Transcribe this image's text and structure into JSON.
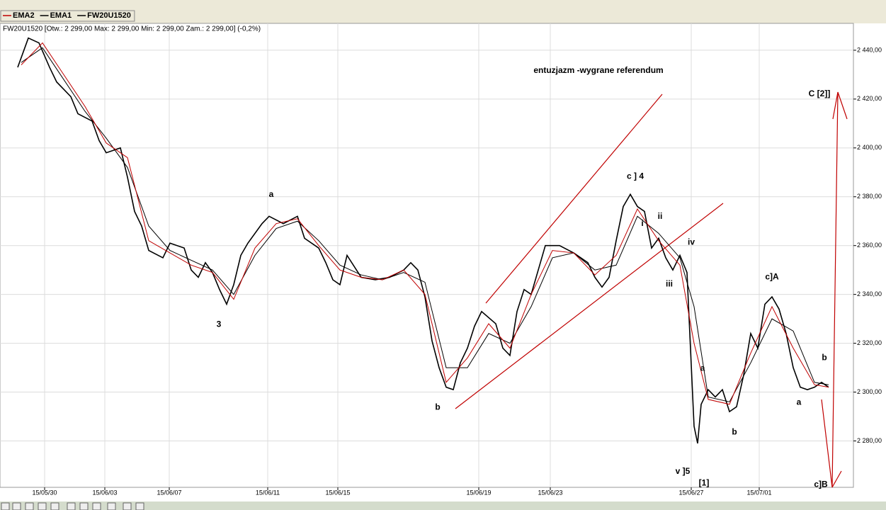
{
  "chart_data": {
    "type": "line",
    "info": "FW20U1520 [Otw.: 2 299,00  Max: 2 299,00  Min: 2 299,00  Zam.: 2 299,00] (-0,2%)",
    "xlim": [
      0,
      120.5
    ],
    "xticks": [
      {
        "value": 6.3,
        "label": "15/05/30"
      },
      {
        "value": 14.8,
        "label": "15/06/03"
      },
      {
        "value": 23.9,
        "label": "15/06/07"
      },
      {
        "value": 37.8,
        "label": "15/06/11"
      },
      {
        "value": 47.7,
        "label": "15/06/15"
      },
      {
        "value": 67.6,
        "label": "15/06/19"
      },
      {
        "value": 77.7,
        "label": "15/06/23"
      },
      {
        "value": 97.6,
        "label": "15/06/27"
      },
      {
        "value": 107.2,
        "label": "15/07/01"
      }
    ],
    "ylim": [
      2261,
      2451
    ],
    "yticks": [
      {
        "value": 2280,
        "label": "2 280,00"
      },
      {
        "value": 2300,
        "label": "2 300,00"
      },
      {
        "value": 2320,
        "label": "2 320,00"
      },
      {
        "value": 2340,
        "label": "2 340,00"
      },
      {
        "value": 2360,
        "label": "2 360,00"
      },
      {
        "value": 2380,
        "label": "2 380,00"
      },
      {
        "value": 2400,
        "label": "2 400,00"
      },
      {
        "value": 2420,
        "label": "2 420,00"
      },
      {
        "value": 2440,
        "label": "2 440,00"
      }
    ],
    "grid": true,
    "series": [
      {
        "name": "EMA2",
        "color": "#c00000",
        "x": [
          3,
          6,
          9,
          12,
          15,
          18,
          21,
          24,
          27,
          30,
          33,
          36,
          39,
          42,
          45,
          48,
          51,
          54,
          57,
          60,
          63,
          66,
          69,
          72,
          75,
          78,
          81,
          84,
          87,
          90,
          93,
          96,
          98,
          100,
          103,
          106,
          109,
          112,
          115,
          117
        ],
        "values": [
          2434,
          2443,
          2430,
          2417,
          2402,
          2396,
          2362,
          2357,
          2352,
          2349,
          2338,
          2359,
          2369,
          2371,
          2360,
          2350,
          2347,
          2346,
          2350,
          2340,
          2304,
          2314,
          2328,
          2318,
          2340,
          2358,
          2357,
          2348,
          2356,
          2375,
          2362,
          2352,
          2320,
          2297,
          2295,
          2316,
          2335,
          2318,
          2303,
          2302
        ]
      },
      {
        "name": "EMA1",
        "color": "#000000",
        "x": [
          3,
          6,
          9,
          12,
          15,
          18,
          21,
          24,
          27,
          30,
          33,
          36,
          39,
          42,
          45,
          48,
          51,
          54,
          57,
          60,
          63,
          66,
          69,
          72,
          75,
          78,
          81,
          84,
          87,
          90,
          93,
          96,
          98,
          100,
          103,
          106,
          109,
          112,
          115,
          117
        ],
        "values": [
          2435,
          2441,
          2428,
          2415,
          2404,
          2392,
          2368,
          2358,
          2354,
          2350,
          2340,
          2356,
          2367,
          2370,
          2362,
          2352,
          2348,
          2346,
          2349,
          2345,
          2310,
          2310,
          2324,
          2320,
          2335,
          2355,
          2357,
          2350,
          2352,
          2372,
          2365,
          2355,
          2335,
          2298,
          2296,
          2312,
          2330,
          2325,
          2304,
          2303
        ]
      },
      {
        "name": "FW20U1520",
        "color": "#000000",
        "x": [
          2.5,
          4,
          5.5,
          7,
          8,
          10,
          11,
          13,
          14,
          15,
          17,
          18,
          19,
          20,
          21,
          23,
          24,
          26,
          27,
          28,
          29,
          30,
          31,
          32,
          33,
          34,
          35,
          37,
          38,
          40,
          42,
          43,
          45,
          46,
          47,
          48,
          49,
          51,
          53,
          55,
          57,
          58,
          59,
          60,
          61,
          62,
          63,
          64,
          65,
          66,
          67,
          68,
          70,
          71,
          72,
          73,
          74,
          75,
          76,
          77,
          79,
          81,
          83,
          84,
          85,
          86,
          87,
          88,
          89,
          90,
          91,
          92,
          93,
          94,
          95,
          96,
          97,
          98,
          98.5,
          99,
          100,
          101,
          102,
          103,
          104,
          105,
          106,
          107,
          108,
          109,
          110,
          111,
          112,
          113,
          114,
          115,
          116,
          117
        ],
        "values": [
          2433,
          2445,
          2443,
          2433,
          2427,
          2421,
          2414,
          2411,
          2403,
          2398,
          2400,
          2388,
          2374,
          2368,
          2358,
          2355,
          2361,
          2359,
          2350,
          2347,
          2353,
          2349,
          2342,
          2336,
          2344,
          2356,
          2361,
          2369,
          2372,
          2369,
          2372,
          2363,
          2359,
          2353,
          2346,
          2344,
          2356,
          2347,
          2346,
          2347,
          2350,
          2353,
          2350,
          2339,
          2321,
          2310,
          2302,
          2301,
          2312,
          2318,
          2327,
          2333,
          2328,
          2318,
          2315,
          2333,
          2342,
          2340,
          2350,
          2360,
          2360,
          2357,
          2353,
          2347,
          2343,
          2347,
          2362,
          2376,
          2381,
          2376,
          2374,
          2359,
          2363,
          2355,
          2350,
          2356,
          2349,
          2286,
          2279,
          2295,
          2301,
          2298,
          2301,
          2292,
          2294,
          2307,
          2324,
          2318,
          2336,
          2339,
          2334,
          2324,
          2310,
          2302,
          2301,
          2302,
          2304,
          2302
        ]
      }
    ],
    "annotations": [
      {
        "text": "entuzjazm -wygrane referendum",
        "x": 84.5,
        "y": 2431.6
      },
      {
        "text": "C  [2]]",
        "x": 115.7,
        "y": 2422
      },
      {
        "text": "c ] 4",
        "x": 89.7,
        "y": 2388.3
      },
      {
        "text": "a",
        "x": 38.3,
        "y": 2380.8
      },
      {
        "text": "ii",
        "x": 93.2,
        "y": 2371.8
      },
      {
        "text": "i",
        "x": 90.7,
        "y": 2369
      },
      {
        "text": "iv",
        "x": 97.6,
        "y": 2361.3
      },
      {
        "text": "iii",
        "x": 94.5,
        "y": 2344.2
      },
      {
        "text": "c]A",
        "x": 109,
        "y": 2347
      },
      {
        "text": "3",
        "x": 30.9,
        "y": 2327.6
      },
      {
        "text": "b",
        "x": 116.4,
        "y": 2314
      },
      {
        "text": "a",
        "x": 99.2,
        "y": 2309.6
      },
      {
        "text": "b",
        "x": 61.8,
        "y": 2293.7
      },
      {
        "text": "a",
        "x": 112.8,
        "y": 2295.7
      },
      {
        "text": "b",
        "x": 103.7,
        "y": 2283.5
      },
      {
        "text": "v ]5",
        "x": 96.4,
        "y": 2267.5
      },
      {
        "text": "[1]",
        "x": 99.4,
        "y": 2262.6
      },
      {
        "text": "c]B",
        "x": 115.9,
        "y": 2262
      }
    ],
    "annotation_color": "#a01010"
  }
}
